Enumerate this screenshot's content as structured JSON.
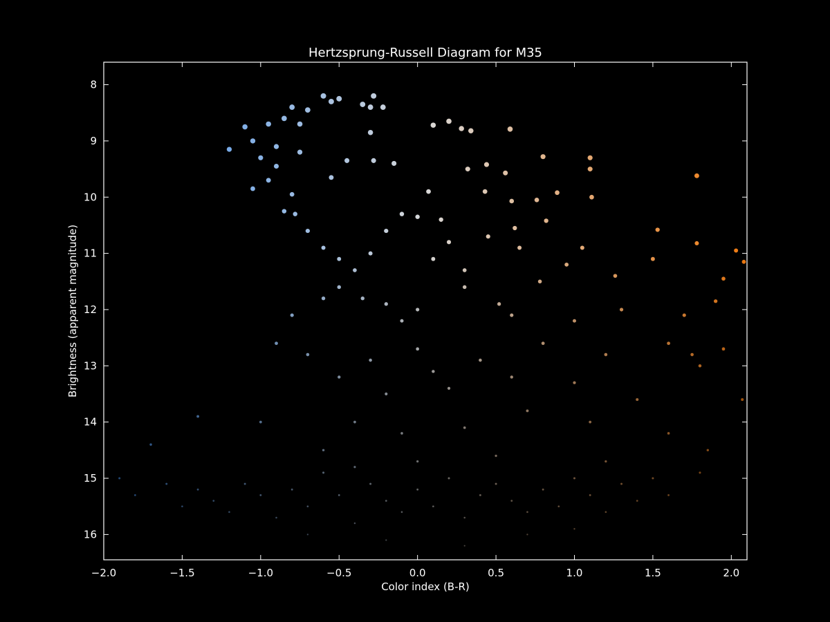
{
  "chart_data": {
    "type": "scatter",
    "title": "Hertzsprung-Russell Diagram for M35",
    "x_label": "Color index (B-R)",
    "y_label": "Brightness (apparent magnitude)",
    "xlim": [
      -2.0,
      2.1
    ],
    "ylim": [
      16.45,
      7.6
    ],
    "xticks": [
      {
        "value": -2.0,
        "label": "−2.0"
      },
      {
        "value": -1.5,
        "label": "−1.5"
      },
      {
        "value": -1.0,
        "label": "−1.0"
      },
      {
        "value": -0.5,
        "label": "−0.5"
      },
      {
        "value": 0,
        "label": "0.0"
      },
      0.5,
      {
        "value": 1,
        "label": "1.0"
      },
      1.5,
      {
        "value": 2,
        "label": "2.0"
      }
    ],
    "yticks": [
      8,
      9,
      10,
      11,
      12,
      13,
      14,
      15,
      16
    ],
    "colormap": [
      "#3d8ef0",
      "#d8d8d8",
      "#f07a10"
    ],
    "x": [
      -1.2,
      -1.1,
      -1.05,
      -1.0,
      -0.95,
      -0.9,
      -0.85,
      -0.8,
      -0.75,
      -0.7,
      -0.75,
      -0.9,
      -1.05,
      -0.95,
      -0.8,
      -0.78,
      -0.85,
      -0.6,
      -0.55,
      -0.5,
      -0.35,
      -0.3,
      -0.28,
      -0.22,
      -0.3,
      -0.45,
      -0.28,
      -0.15,
      -0.55,
      0.1,
      0.2,
      0.28,
      0.34,
      0.59,
      0.8,
      1.1,
      1.1,
      1.78,
      0.32,
      0.44,
      0.56,
      0.6,
      0.76,
      0.89,
      1.11,
      0.43,
      0.07,
      -0.7,
      -0.6,
      -0.5,
      -0.4,
      -0.3,
      -0.2,
      -0.1,
      0.0,
      -0.35,
      -0.2,
      -0.1,
      0.0,
      -0.5,
      -0.6,
      -0.8,
      0.15,
      0.2,
      0.1,
      0.3,
      0.45,
      0.62,
      0.65,
      0.82,
      1.05,
      1.5,
      1.53,
      1.78,
      2.03,
      2.08,
      1.26,
      0.95,
      0.78,
      0.3,
      0.52,
      1.95,
      1.9,
      0.6,
      1.0,
      1.3,
      1.7,
      1.6,
      1.75,
      1.8,
      1.95,
      2.07,
      -0.9,
      -0.7,
      -0.5,
      -0.3,
      -0.2,
      0.0,
      0.1,
      0.2,
      0.4,
      0.6,
      0.8,
      1.0,
      1.2,
      1.4,
      -0.4,
      -0.1,
      0.3,
      0.7,
      1.1,
      1.6,
      1.85,
      -1.0,
      -1.4,
      -0.6,
      -1.9,
      -1.8,
      -1.7,
      -1.6,
      -1.5,
      -1.4,
      -1.3,
      -1.2,
      -1.1,
      -1.0,
      -0.9,
      -0.8,
      -0.7,
      -0.6,
      -0.5,
      -0.4,
      -0.3,
      -0.2,
      -0.1,
      0.0,
      0.1,
      0.2,
      0.3,
      0.4,
      0.5,
      0.6,
      0.7,
      0.8,
      0.9,
      1.0,
      1.1,
      1.2,
      1.3,
      1.4,
      1.5,
      1.6,
      1.8,
      -0.2,
      0.3,
      0.7,
      -0.7,
      1.0,
      0.0,
      0.5,
      -0.4,
      1.2
    ],
    "values": [
      9.15,
      8.75,
      9.0,
      9.3,
      8.7,
      9.1,
      8.6,
      8.4,
      8.7,
      8.45,
      9.2,
      9.45,
      9.85,
      9.7,
      9.95,
      10.3,
      10.25,
      8.2,
      8.3,
      8.25,
      8.35,
      8.4,
      8.2,
      8.4,
      8.85,
      9.35,
      9.35,
      9.4,
      9.65,
      8.72,
      8.65,
      8.78,
      8.82,
      8.79,
      9.28,
      9.3,
      9.5,
      9.62,
      9.5,
      9.42,
      9.57,
      10.07,
      10.05,
      9.92,
      10.0,
      9.9,
      9.9,
      10.6,
      10.9,
      11.1,
      11.3,
      11.0,
      10.6,
      10.3,
      10.35,
      11.8,
      11.9,
      12.2,
      12.0,
      11.6,
      11.8,
      12.1,
      10.4,
      10.8,
      11.1,
      11.3,
      10.7,
      10.55,
      10.9,
      10.42,
      10.9,
      11.1,
      10.58,
      10.82,
      10.95,
      11.15,
      11.4,
      11.2,
      11.5,
      11.6,
      11.9,
      11.45,
      11.85,
      12.1,
      12.2,
      12.0,
      12.1,
      12.6,
      12.8,
      13.0,
      12.7,
      13.6,
      12.6,
      12.8,
      13.2,
      12.9,
      13.5,
      12.7,
      13.1,
      13.4,
      12.9,
      13.2,
      12.6,
      13.3,
      12.8,
      13.6,
      14.0,
      14.2,
      14.1,
      13.8,
      14.0,
      14.2,
      14.5,
      14.0,
      13.9,
      14.5,
      15.0,
      15.3,
      14.4,
      15.1,
      15.5,
      15.2,
      15.4,
      15.6,
      15.1,
      15.3,
      15.7,
      15.2,
      15.5,
      14.9,
      15.3,
      15.8,
      15.1,
      15.4,
      15.6,
      15.2,
      15.5,
      15.0,
      15.7,
      15.3,
      15.1,
      15.4,
      15.6,
      15.2,
      15.5,
      15.0,
      15.3,
      15.6,
      15.1,
      15.4,
      15.0,
      15.3,
      14.9,
      16.1,
      16.2,
      16.0,
      16.0,
      15.9,
      14.7,
      14.6,
      14.8,
      14.7
    ]
  }
}
